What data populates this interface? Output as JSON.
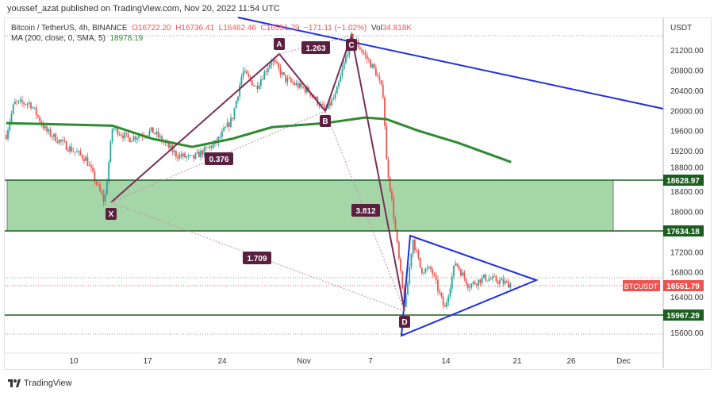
{
  "publisher_line": "youssef_azat published on TradingView.com, Nov 20, 2022 11:54 UTC",
  "legend": {
    "symbol": "Bitcoin / TetherUS, 4h, BINANCE",
    "open": "O16722.20",
    "high": "H16736.41",
    "low": "L16462.46",
    "close": "C16551.79",
    "change": "−171.11 (−1.02%)",
    "vol_label": "Vol",
    "vol": "34.818K",
    "ma_label": "MA (200, close, 0, SMA, 5)",
    "ma_value": "18978.19"
  },
  "colors": {
    "up": "#26a69a",
    "down": "#ef5350",
    "ma": "#2e8b30",
    "trend": "#1e2ee0",
    "pattern": "#7a2e57",
    "zone": "#a5d6a7",
    "level": "#1b5e20"
  },
  "pattern": {
    "points": [
      "X",
      "A",
      "B",
      "C",
      "D"
    ],
    "ratios": [
      "0.376",
      "1.263",
      "3.812",
      "1.709"
    ]
  },
  "levels": [
    "18628.97",
    "17634.18",
    "15967.29"
  ],
  "last_price": {
    "symbol": "BTCUSDT",
    "value": "16551.79"
  },
  "footer": {
    "brand": "TradingView"
  },
  "chart_data": {
    "type": "candlestick",
    "title": "Bitcoin / TetherUS, 4h, BINANCE",
    "ylabel": "USDT",
    "ylim": [
      15400,
      21600
    ],
    "yticks": [
      "21200.00",
      "20800.00",
      "20400.00",
      "20000.00",
      "19600.00",
      "19200.00",
      "18800.00",
      "18400.00",
      "18000.00",
      "17200.00",
      "16800.00",
      "16400.00",
      "15600.00"
    ],
    "xticks": [
      "10",
      "17",
      "24",
      "Nov",
      "7",
      "14",
      "21",
      "26",
      "Dec"
    ],
    "price_path": [
      [
        "2022-10-04T00:00",
        19517
      ],
      [
        "2022-10-04T18:00",
        20146
      ],
      [
        "2022-10-06T06:00",
        20146
      ],
      [
        "2022-10-07T18:00",
        19596
      ],
      [
        "2022-10-09T18:00",
        19281
      ],
      [
        "2022-10-11T12:00",
        19045
      ],
      [
        "2022-10-13T06:00",
        18180
      ],
      [
        "2022-10-14T00:00",
        19674
      ],
      [
        "2022-10-15T12:00",
        19438
      ],
      [
        "2022-10-17T18:00",
        19596
      ],
      [
        "2022-10-20T00:00",
        19124
      ],
      [
        "2022-10-21T12:00",
        19045
      ],
      [
        "2022-10-23T18:00",
        19360
      ],
      [
        "2022-10-25T06:00",
        19831
      ],
      [
        "2022-10-26T06:00",
        20775
      ],
      [
        "2022-10-27T12:00",
        20461
      ],
      [
        "2022-10-29T00:00",
        21011
      ],
      [
        "2022-10-30T06:00",
        20618
      ],
      [
        "2022-11-01T12:00",
        20382
      ],
      [
        "2022-11-03T00:00",
        19989
      ],
      [
        "2022-11-04T00:00",
        20303
      ],
      [
        "2022-11-05T12:00",
        21483
      ],
      [
        "2022-11-06T18:00",
        21090
      ],
      [
        "2022-11-07T18:00",
        20775
      ],
      [
        "2022-11-08T12:00",
        20303
      ],
      [
        "2022-11-08T18:00",
        19045
      ],
      [
        "2022-11-09T06:00",
        18259
      ],
      [
        "2022-11-10T12:00",
        16057
      ],
      [
        "2022-11-11T06:00",
        17472
      ],
      [
        "2022-11-12T00:00",
        16843
      ],
      [
        "2022-11-13T00:00",
        16843
      ],
      [
        "2022-11-14T06:00",
        16057
      ],
      [
        "2022-11-15T06:00",
        17000
      ],
      [
        "2022-11-16T12:00",
        16528
      ],
      [
        "2022-11-18T00:00",
        16685
      ],
      [
        "2022-11-19T12:00",
        16607
      ],
      [
        "2022-11-20T12:00",
        16552
      ]
    ],
    "ma_series": [
      [
        "2022-10-04T00:00",
        19750
      ],
      [
        "2022-10-14T00:00",
        19700
      ],
      [
        "2022-10-17T18:00",
        19440
      ],
      [
        "2022-10-21T12:00",
        19280
      ],
      [
        "2022-10-25T06:00",
        19440
      ],
      [
        "2022-10-29T00:00",
        19670
      ],
      [
        "2022-11-03T00:00",
        19750
      ],
      [
        "2022-11-06T18:00",
        19860
      ],
      [
        "2022-11-08T18:00",
        19830
      ],
      [
        "2022-11-11T18:00",
        19600
      ],
      [
        "2022-11-15T12:00",
        19360
      ],
      [
        "2022-11-20T12:00",
        18978
      ]
    ]
  }
}
